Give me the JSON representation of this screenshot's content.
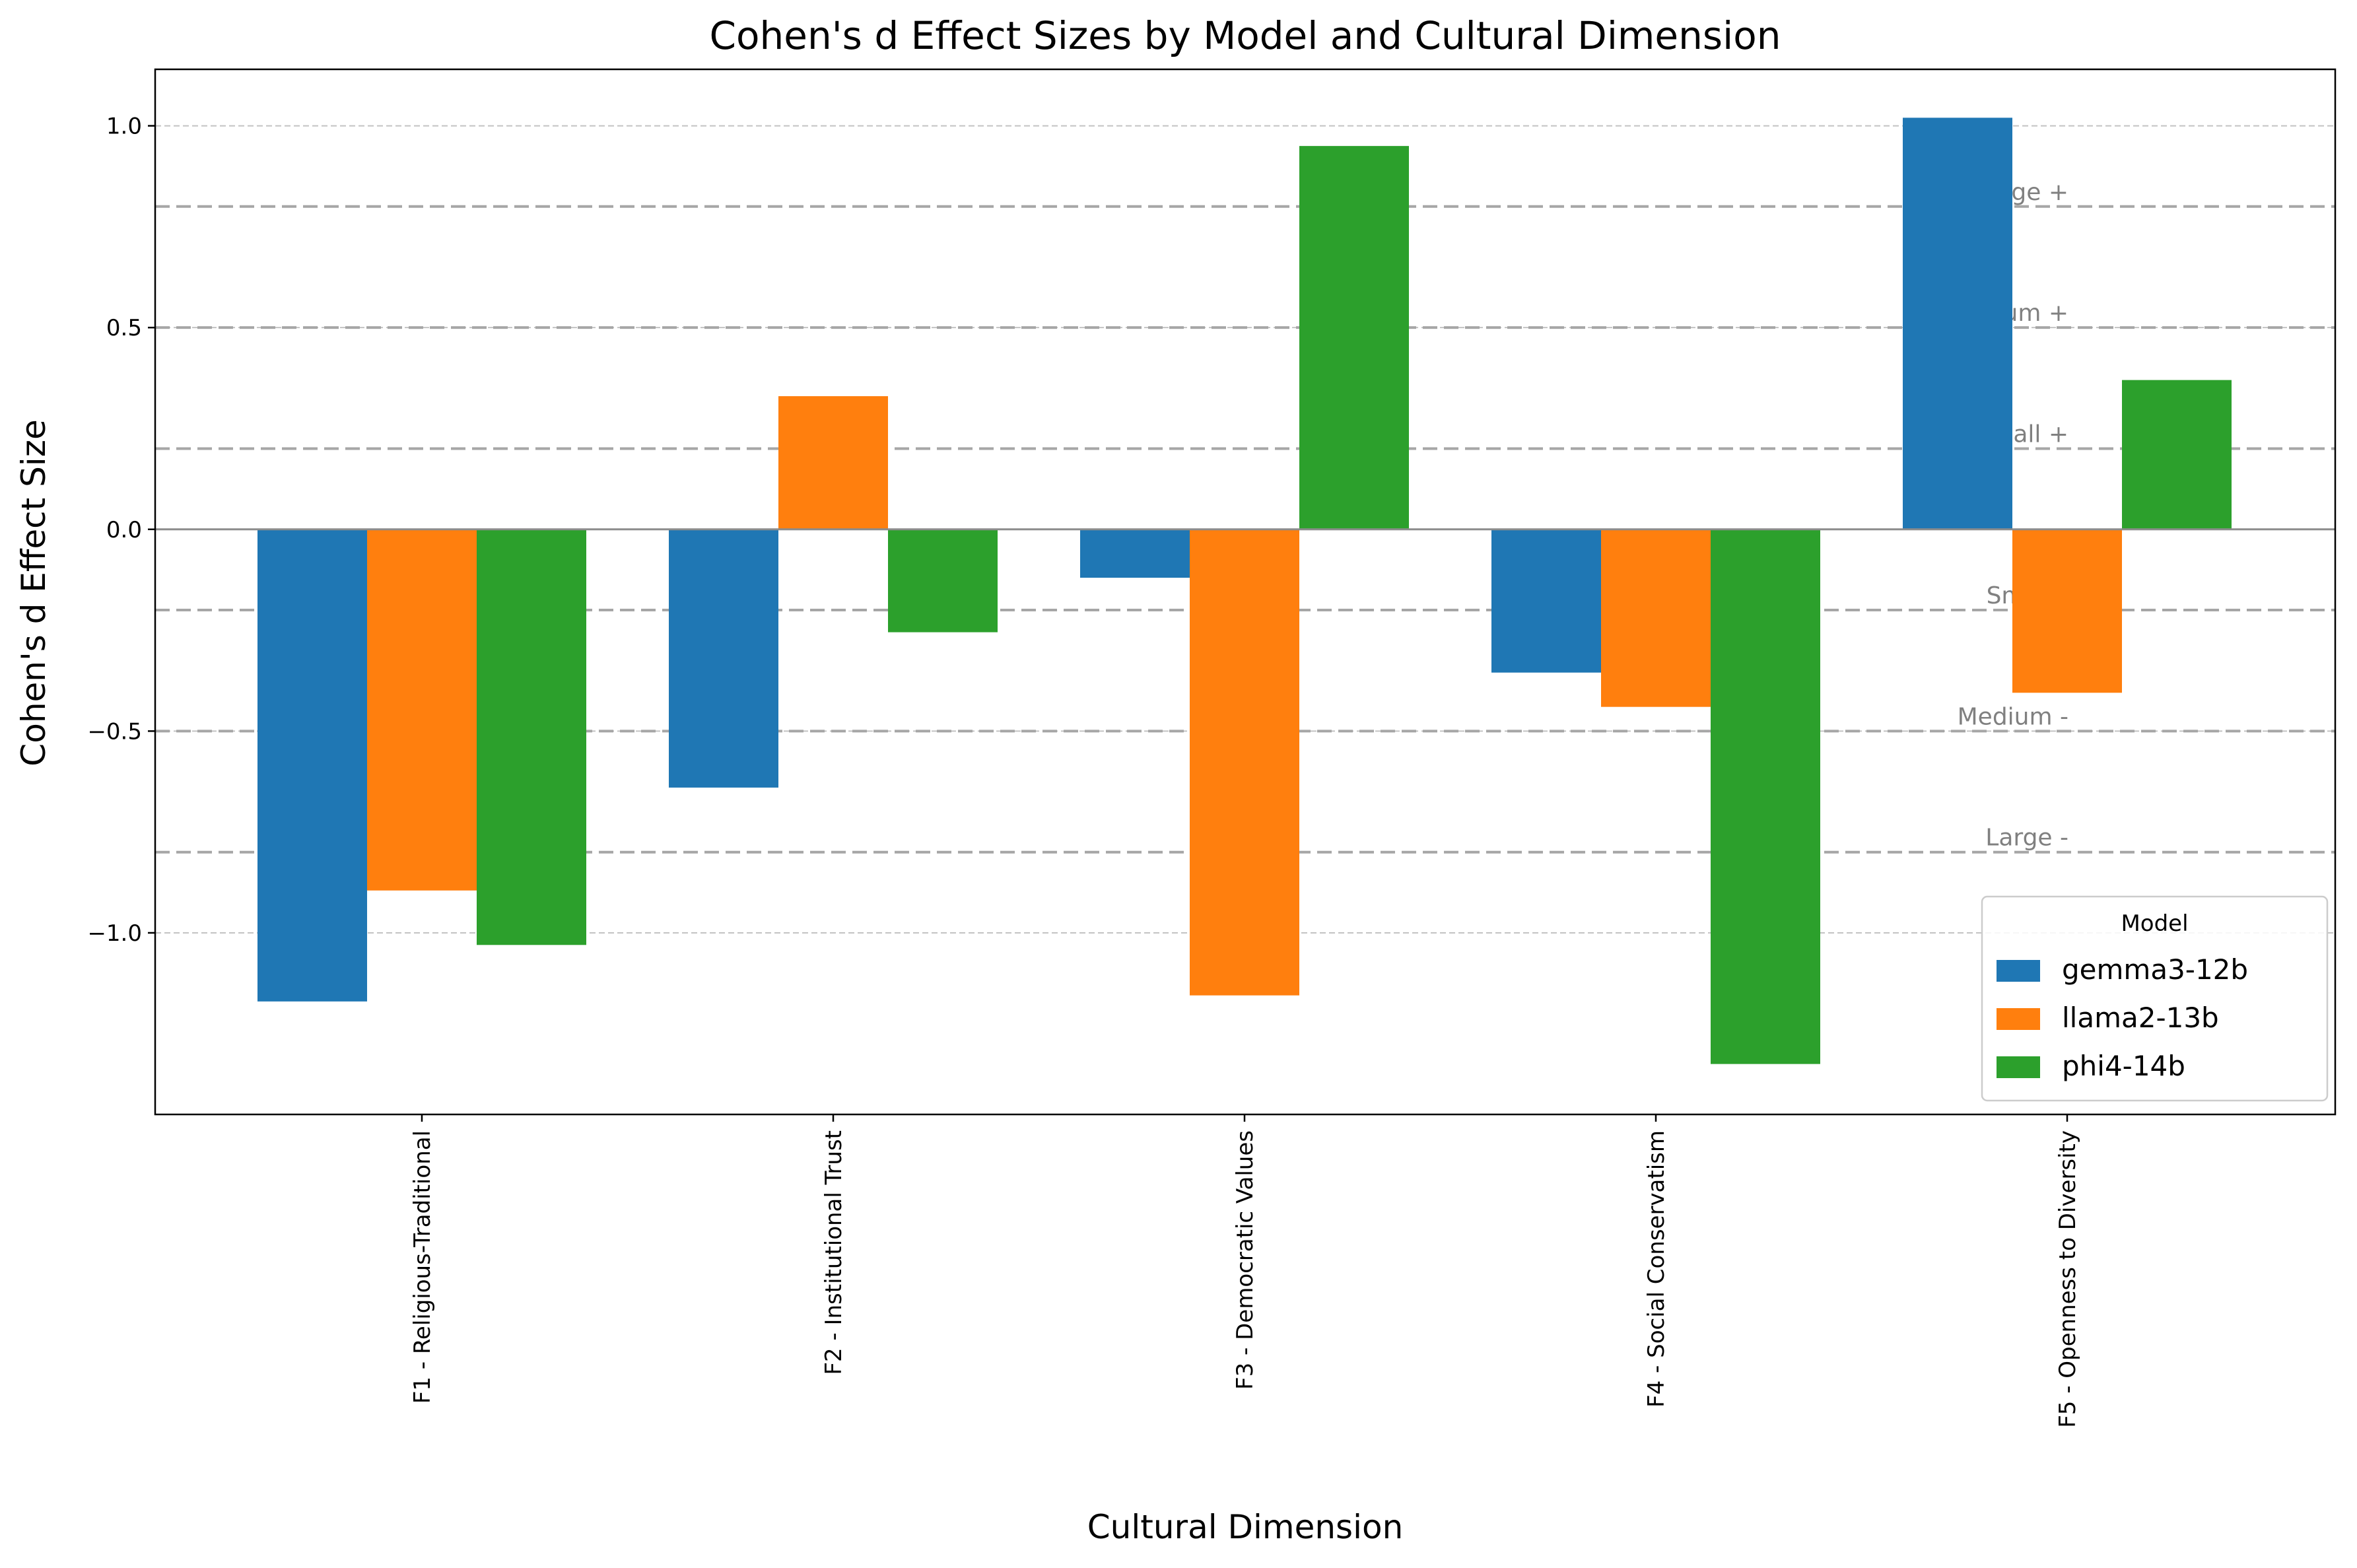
{
  "chart_data": {
    "type": "bar",
    "title": "Cohen's d Effect Sizes by Model and Cultural Dimension",
    "xlabel": "Cultural Dimension",
    "ylabel": "Cohen's d Effect Size",
    "ylim": [
      -1.45,
      1.14
    ],
    "yticks": [
      1.0,
      0.5,
      0.0,
      -0.5,
      -1.0
    ],
    "ytick_labels": [
      "1.0",
      "0.5",
      "0.0",
      "−0.5",
      "−1.0"
    ],
    "grid": true,
    "categories": [
      "F1 - Religious-Traditional",
      "F2 - Institutional Trust",
      "F3 - Democratic Values",
      "F4 - Social Conservatism",
      "F5 - Openness to Diversity"
    ],
    "series": [
      {
        "name": "gemma3-12b",
        "color": "#1f77b4",
        "values": [
          -1.17,
          -0.64,
          -0.12,
          -0.355,
          1.02
        ]
      },
      {
        "name": "llama2-13b",
        "color": "#ff7f0e",
        "values": [
          -0.895,
          0.33,
          -1.155,
          -0.44,
          -0.405
        ]
      },
      {
        "name": "phi4-14b",
        "color": "#2ca02c",
        "values": [
          -1.03,
          -0.255,
          0.95,
          -1.325,
          0.37
        ]
      }
    ],
    "thresholds": [
      {
        "value": 0.8,
        "label": "Large +"
      },
      {
        "value": 0.5,
        "label": "Medium +"
      },
      {
        "value": 0.2,
        "label": "Small +"
      },
      {
        "value": -0.2,
        "label": "Small -"
      },
      {
        "value": -0.5,
        "label": "Medium -"
      },
      {
        "value": -0.8,
        "label": "Large -"
      }
    ],
    "legend": {
      "title": "Model",
      "position": "lower-right"
    }
  }
}
